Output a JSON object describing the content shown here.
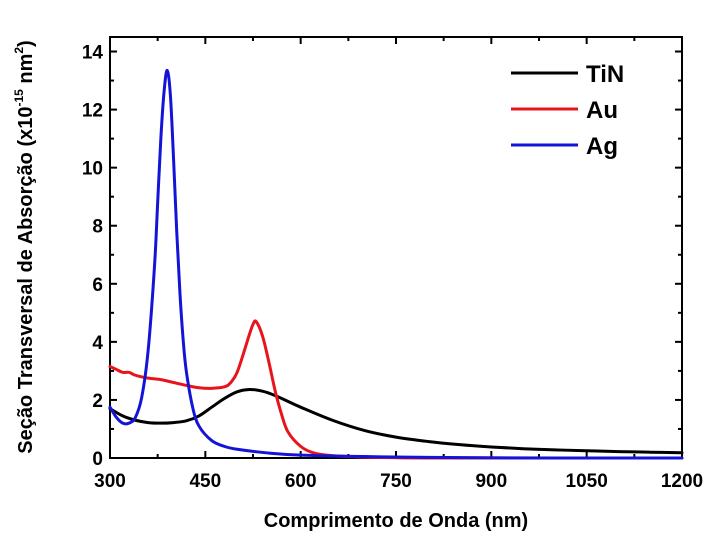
{
  "chart_data": {
    "type": "line",
    "xlabel": "Comprimento de Onda (nm)",
    "ylabel": {
      "base": "Seção Transversal de Absorção (x10",
      "exp1": "-15",
      "mid": " nm",
      "exp2": "2",
      "close": ")"
    },
    "xlim": [
      300,
      1200
    ],
    "ylim": [
      0,
      14.5
    ],
    "xticks": [
      "300",
      "450",
      "600",
      "750",
      "900",
      "1050",
      "1200"
    ],
    "yticks": [
      "0",
      "2",
      "4",
      "6",
      "8",
      "10",
      "12",
      "14"
    ],
    "grid": false,
    "legend_position": "top-right",
    "series": [
      {
        "name": "TiN",
        "color": "#000000",
        "x": [
          300,
          320,
          340,
          360,
          380,
          400,
          420,
          440,
          460,
          480,
          500,
          520,
          540,
          560,
          580,
          600,
          650,
          700,
          750,
          800,
          850,
          900,
          950,
          1000,
          1050,
          1100,
          1150,
          1200
        ],
        "y": [
          1.7,
          1.45,
          1.3,
          1.22,
          1.2,
          1.22,
          1.28,
          1.45,
          1.75,
          2.05,
          2.28,
          2.36,
          2.3,
          2.15,
          1.95,
          1.75,
          1.3,
          0.95,
          0.72,
          0.57,
          0.46,
          0.38,
          0.32,
          0.28,
          0.25,
          0.22,
          0.2,
          0.18
        ]
      },
      {
        "name": "Au",
        "color": "#e8141c",
        "x": [
          300,
          310,
          320,
          330,
          340,
          360,
          380,
          400,
          420,
          440,
          460,
          480,
          490,
          500,
          510,
          520,
          525,
          530,
          540,
          550,
          560,
          570,
          580,
          600,
          620,
          650,
          700,
          800,
          1000,
          1200
        ],
        "y": [
          3.15,
          3.05,
          2.95,
          2.95,
          2.85,
          2.75,
          2.7,
          2.6,
          2.5,
          2.42,
          2.4,
          2.45,
          2.6,
          2.95,
          3.6,
          4.3,
          4.6,
          4.7,
          4.2,
          3.3,
          2.3,
          1.5,
          0.9,
          0.4,
          0.18,
          0.08,
          0.03,
          0.0,
          0.0,
          0.0
        ]
      },
      {
        "name": "Ag",
        "color": "#1414d8",
        "x": [
          300,
          310,
          320,
          330,
          340,
          350,
          360,
          370,
          375,
          380,
          385,
          390,
          395,
          400,
          405,
          410,
          415,
          420,
          430,
          440,
          460,
          480,
          500,
          550,
          600,
          700,
          800,
          1000,
          1200
        ],
        "y": [
          1.75,
          1.4,
          1.2,
          1.2,
          1.4,
          2.1,
          3.7,
          6.6,
          8.8,
          11.0,
          12.6,
          13.35,
          12.5,
          10.3,
          7.8,
          5.7,
          4.1,
          3.0,
          1.75,
          1.1,
          0.6,
          0.4,
          0.3,
          0.17,
          0.1,
          0.05,
          0.02,
          0.0,
          0.0
        ]
      }
    ]
  }
}
